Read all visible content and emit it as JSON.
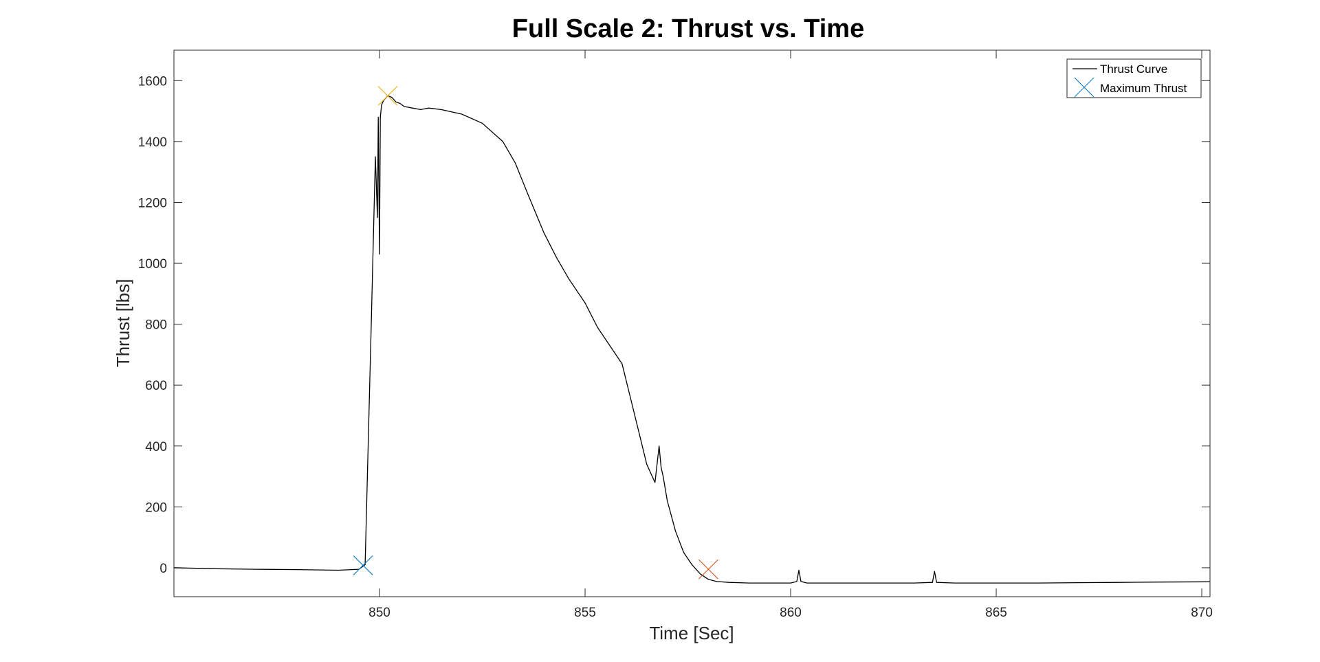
{
  "chart_data": {
    "type": "line",
    "title": "Full Scale 2: Thrust vs. Time",
    "xlabel": "Time [Sec]",
    "ylabel": "Thrust [lbs]",
    "xlim": [
      845.0,
      870.2
    ],
    "ylim": [
      -95,
      1700
    ],
    "xticks": [
      850,
      855,
      860,
      865,
      870
    ],
    "yticks": [
      0,
      200,
      400,
      600,
      800,
      1000,
      1200,
      1400,
      1600
    ],
    "grid": false,
    "legend_position": "top-right",
    "legend": [
      "Thrust Curve",
      "Maximum Thrust"
    ],
    "series": [
      {
        "name": "Thrust Curve",
        "color": "#000000",
        "x": [
          845.0,
          846.0,
          847.0,
          848.0,
          849.0,
          849.5,
          849.65,
          849.8,
          849.9,
          849.95,
          849.97,
          850.0,
          850.02,
          850.05,
          850.1,
          850.2,
          850.3,
          850.4,
          850.5,
          850.6,
          850.8,
          851.0,
          851.2,
          851.5,
          852.0,
          852.5,
          853.0,
          853.3,
          853.6,
          854.0,
          854.3,
          854.6,
          855.0,
          855.3,
          855.6,
          855.9,
          856.1,
          856.3,
          856.5,
          856.7,
          856.8,
          856.85,
          856.9,
          857.0,
          857.2,
          857.4,
          857.6,
          857.8,
          858.0,
          858.2,
          858.5,
          859.0,
          859.5,
          860.0,
          860.15,
          860.2,
          860.25,
          860.4,
          861.0,
          862.0,
          863.0,
          863.45,
          863.5,
          863.55,
          864.0,
          865.0,
          866.0,
          867.0,
          868.0,
          869.0,
          870.2
        ],
        "y": [
          0,
          -3,
          -5,
          -6,
          -8,
          -5,
          10,
          800,
          1350,
          1150,
          1480,
          1030,
          1480,
          1520,
          1535,
          1550,
          1545,
          1530,
          1525,
          1515,
          1510,
          1505,
          1510,
          1505,
          1490,
          1460,
          1400,
          1330,
          1230,
          1100,
          1020,
          950,
          870,
          790,
          730,
          670,
          560,
          450,
          340,
          280,
          400,
          330,
          300,
          220,
          120,
          50,
          10,
          -20,
          -38,
          -45,
          -48,
          -50,
          -50,
          -50,
          -45,
          -8,
          -45,
          -50,
          -50,
          -50,
          -50,
          -48,
          -12,
          -48,
          -50,
          -50,
          -50,
          -49,
          -48,
          -47,
          -46
        ]
      }
    ],
    "markers": [
      {
        "x": 849.6,
        "y": 8,
        "color": "#0072bd"
      },
      {
        "x": 850.2,
        "y": 1550,
        "color": "#edb120"
      },
      {
        "x": 858.0,
        "y": -5,
        "color": "#d95319"
      }
    ]
  }
}
